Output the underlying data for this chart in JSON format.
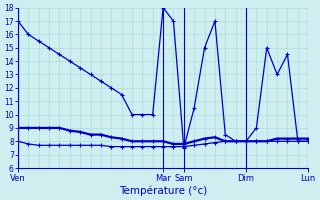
{
  "xlabel": "Température (°c)",
  "bg_color": "#ceeef0",
  "line_color": "#0000cc",
  "grid_color": "#aadddd",
  "ylim": [
    6,
    18
  ],
  "ytick_min": 6,
  "ytick_max": 18,
  "xlim_max": 28,
  "day_labels": [
    "Ven",
    "Mar",
    "Sam",
    "Dim",
    "Lun"
  ],
  "day_positions": [
    0,
    14,
    16,
    22,
    28
  ],
  "sep_positions": [
    0,
    14,
    16,
    22,
    28
  ],
  "n_points": 29,
  "line1_x": [
    0,
    1,
    2,
    3,
    4,
    5,
    6,
    7,
    8,
    9,
    10,
    11,
    12,
    13,
    14,
    15,
    16,
    17,
    18,
    19,
    20,
    21,
    22,
    23,
    24,
    25,
    26,
    27,
    28
  ],
  "line1_y": [
    17,
    16,
    15.5,
    15,
    14.5,
    14,
    13.5,
    13,
    12.5,
    12,
    11.5,
    10,
    10,
    10,
    18,
    17,
    7.5,
    10.5,
    15,
    17,
    8.5,
    8,
    8,
    9,
    15,
    13,
    14.5,
    8,
    8
  ],
  "line2_x": [
    0,
    1,
    2,
    3,
    4,
    5,
    6,
    7,
    8,
    9,
    10,
    11,
    12,
    13,
    14,
    15,
    16,
    17,
    18,
    19,
    20,
    21,
    22,
    23,
    24,
    25,
    26,
    27,
    28
  ],
  "line2_y": [
    9,
    9,
    9,
    9,
    9,
    8.8,
    8.7,
    8.5,
    8.5,
    8.3,
    8.2,
    8,
    8,
    8,
    8,
    7.8,
    7.8,
    8,
    8.2,
    8.3,
    8,
    8,
    8,
    8,
    8,
    8.2,
    8.2,
    8.2,
    8.2
  ],
  "line3_x": [
    0,
    1,
    2,
    3,
    4,
    5,
    6,
    7,
    8,
    9,
    10,
    11,
    12,
    13,
    14,
    15,
    16,
    17,
    18,
    19,
    20,
    21,
    22,
    23,
    24,
    25,
    26,
    27,
    28
  ],
  "line3_y": [
    8,
    7.8,
    7.7,
    7.7,
    7.7,
    7.7,
    7.7,
    7.7,
    7.7,
    7.6,
    7.6,
    7.6,
    7.6,
    7.6,
    7.6,
    7.6,
    7.6,
    7.7,
    7.8,
    7.9,
    8,
    8,
    8,
    8,
    8,
    8,
    8,
    8,
    8
  ]
}
